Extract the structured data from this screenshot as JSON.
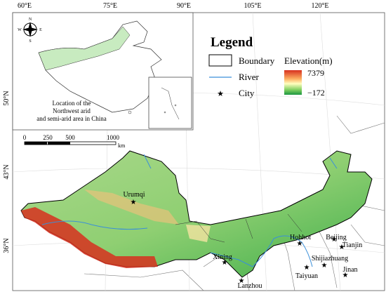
{
  "graticule": {
    "longitudes": [
      "60°E",
      "75°E",
      "90°E",
      "105°E",
      "120°E"
    ],
    "latitudes": [
      "50°N",
      "43°N",
      "36°N"
    ]
  },
  "inset": {
    "compass": [
      "N",
      "S",
      "W",
      "E"
    ],
    "caption": [
      "Location of the",
      "Northwest arid",
      "and semi-arid area in China"
    ]
  },
  "legend": {
    "title": "Legend",
    "items": [
      "Boundary",
      "River",
      "City"
    ],
    "elevation_title": "Elevation(m)",
    "elevation_max": "7379",
    "elevation_min": "−172"
  },
  "scale_bar": {
    "ticks": [
      "0",
      "250",
      "500",
      "1000"
    ],
    "unit": "km"
  },
  "cities": [
    "Urumqi",
    "Hohhot",
    "Beijing",
    "Tianjin",
    "Shijiazhuang",
    "Taiyuan",
    "Jinan",
    "Xining",
    "Lanzhou"
  ]
}
